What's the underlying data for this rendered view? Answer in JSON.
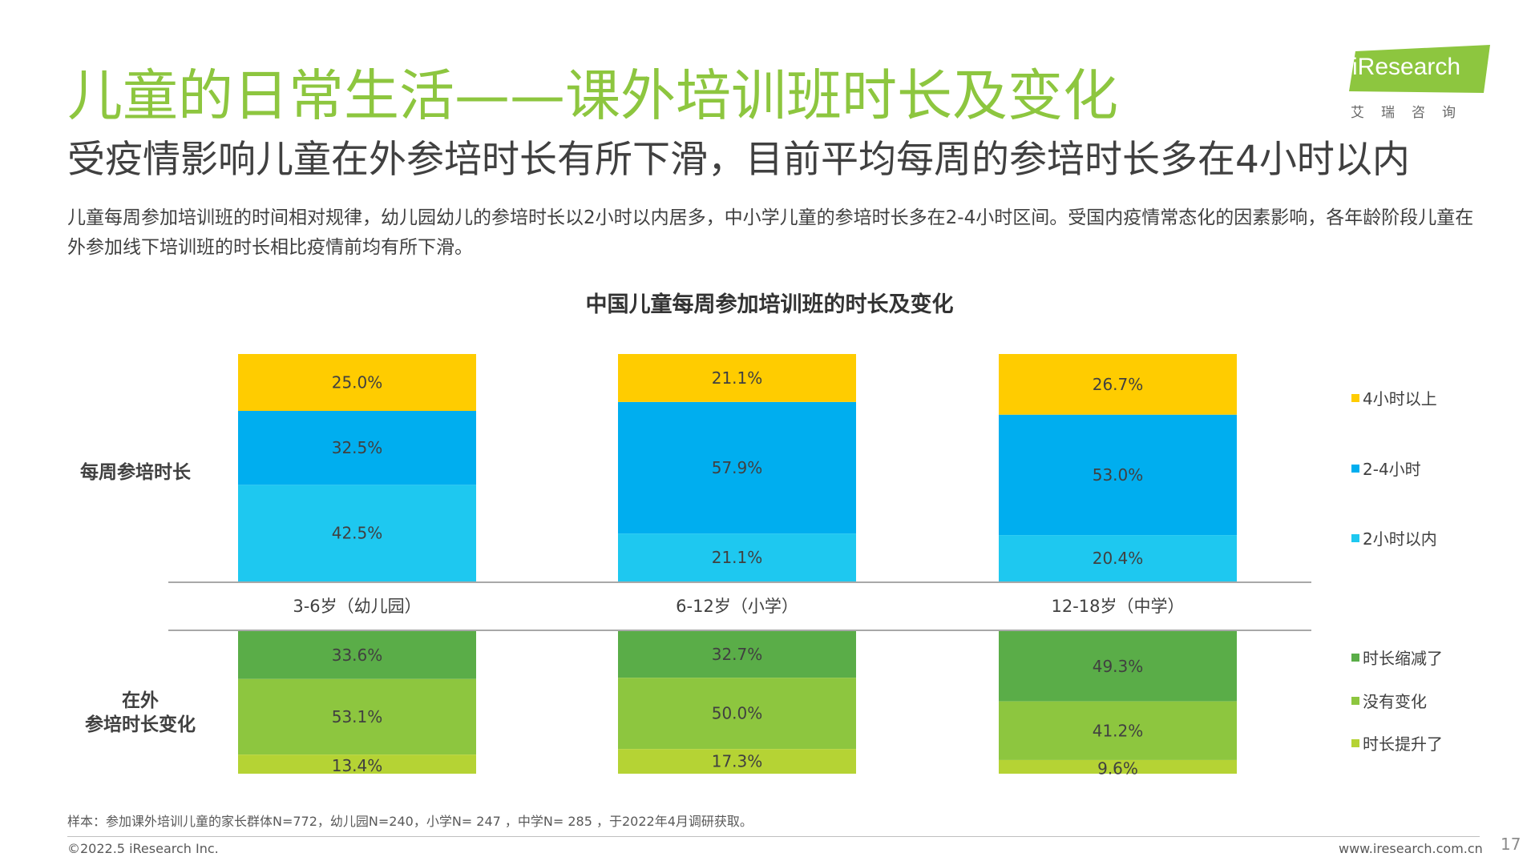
{
  "header": {
    "title": "儿童的日常生活——课外培训班时长及变化",
    "subtitle": "受疫情影响儿童在外参培时长有所下滑，目前平均每周的参培时长多在4小时以内",
    "description": "儿童每周参加培训班的时间相对规律，幼儿园幼儿的参培时长以2小时以内居多，中小学儿童的参培时长多在2-4小时区间。受国内疫情常态化的因素影响，各年龄阶段儿童在外参加线下培训班的时长相比疫情前均有所下滑。"
  },
  "logo": {
    "text": "iResearch",
    "cn": "艾瑞咨询",
    "color": "#8dc63f"
  },
  "chart_title": "中国儿童每周参加培训班的时长及变化",
  "row_labels": {
    "top": "每周参培时长",
    "bottom_line1": "在外",
    "bottom_line2": "参培时长变化"
  },
  "chart_data": [
    {
      "type": "bar",
      "stacked": true,
      "categories": [
        "3-6岁（幼儿园）",
        "6-12岁（小学）",
        "12-18岁（中学）"
      ],
      "series": [
        {
          "name": "2小时以内",
          "values": [
            42.5,
            21.1,
            20.4
          ],
          "labels": [
            "42.5%",
            "21.1%",
            "20.4%"
          ],
          "color": "#1ec8f0"
        },
        {
          "name": "2-4小时",
          "values": [
            32.5,
            57.9,
            53.0
          ],
          "labels": [
            "32.5%",
            "57.9%",
            "53.0%"
          ],
          "color": "#00aeef"
        },
        {
          "name": "4小时以上",
          "values": [
            25.0,
            21.1,
            26.7
          ],
          "labels": [
            "25.0%",
            "21.1%",
            "26.7%"
          ],
          "color": "#ffcc00"
        }
      ],
      "legend": "right"
    },
    {
      "type": "bar",
      "stacked": true,
      "categories": [
        "3-6岁（幼儿园）",
        "6-12岁（小学）",
        "12-18岁（中学）"
      ],
      "series": [
        {
          "name": "时长缩减了",
          "values": [
            33.6,
            32.7,
            49.3
          ],
          "labels": [
            "33.6%",
            "32.7%",
            "49.3%"
          ],
          "color": "#5aad48"
        },
        {
          "name": "没有变化",
          "values": [
            53.1,
            50.0,
            41.2
          ],
          "labels": [
            "53.1%",
            "50.0%",
            "41.2%"
          ],
          "color": "#8dc63f"
        },
        {
          "name": "时长提升了",
          "values": [
            13.4,
            17.3,
            9.6
          ],
          "labels": [
            "13.4%",
            "17.3%",
            "9.6%"
          ],
          "color": "#b5d334"
        }
      ],
      "legend": "right"
    }
  ],
  "legend_top": [
    {
      "label": "4小时以上",
      "color": "#ffcc00"
    },
    {
      "label": "2-4小时",
      "color": "#00aeef"
    },
    {
      "label": "2小时以内",
      "color": "#1ec8f0"
    }
  ],
  "legend_bottom": [
    {
      "label": "时长缩减了",
      "color": "#5aad48"
    },
    {
      "label": "没有变化",
      "color": "#8dc63f"
    },
    {
      "label": "时长提升了",
      "color": "#b5d334"
    }
  ],
  "footer": {
    "note": "样本：参加课外培训儿童的家长群体N=772，幼儿园N=240，小学N= 247 ，中学N= 285 ，于2022年4月调研获取。",
    "copyright": "©2022.5 iResearch Inc.",
    "website": "www.iresearch.com.cn",
    "page": "17"
  }
}
